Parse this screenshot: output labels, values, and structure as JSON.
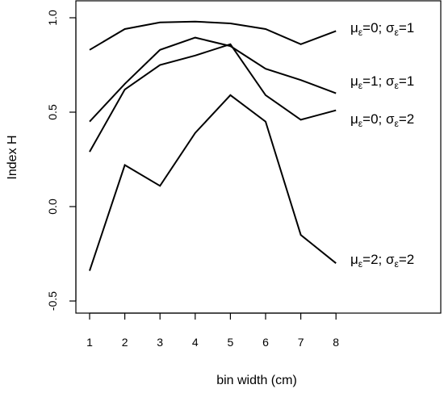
{
  "chart_data": {
    "type": "line",
    "title": "",
    "xlabel": "bin width (cm)",
    "ylabel": "Index H",
    "x": [
      1,
      2,
      3,
      4,
      5,
      6,
      7,
      8
    ],
    "xlim": [
      1,
      8
    ],
    "ylim": [
      -0.5,
      1.0
    ],
    "x_ticks": [
      "1",
      "2",
      "3",
      "4",
      "5",
      "6",
      "7",
      "8"
    ],
    "y_ticks": [
      {
        "value": -0.5,
        "label": "-0.5"
      },
      {
        "value": 0.0,
        "label": "0.0"
      },
      {
        "value": 0.5,
        "label": "0.5"
      },
      {
        "value": 1.0,
        "label": "1.0"
      }
    ],
    "grid": false,
    "legend": "none",
    "series_color": "#000000",
    "series": [
      {
        "mu_symbol": "μ",
        "mu_sub": "ε",
        "mu_val": "=0; ",
        "sigma_symbol": "σ",
        "sigma_sub": "ε",
        "sigma_val": "=1",
        "values": [
          0.83,
          0.94,
          0.975,
          0.98,
          0.97,
          0.94,
          0.86,
          0.93
        ]
      },
      {
        "mu_symbol": "μ",
        "mu_sub": "ε",
        "mu_val": "=1; ",
        "sigma_symbol": "σ",
        "sigma_sub": "ε",
        "sigma_val": "=1",
        "values": [
          0.45,
          0.65,
          0.83,
          0.895,
          0.85,
          0.73,
          0.67,
          0.6
        ]
      },
      {
        "mu_symbol": "μ",
        "mu_sub": "ε",
        "mu_val": "=0; ",
        "sigma_symbol": "σ",
        "sigma_sub": "ε",
        "sigma_val": "=2",
        "values": [
          0.29,
          0.62,
          0.75,
          0.8,
          0.86,
          0.59,
          0.46,
          0.51
        ]
      },
      {
        "mu_symbol": "μ",
        "mu_sub": "ε",
        "mu_val": "=2; ",
        "sigma_symbol": "σ",
        "sigma_sub": "ε",
        "sigma_val": "=2",
        "values": [
          -0.34,
          0.22,
          0.11,
          0.39,
          0.59,
          0.45,
          -0.15,
          -0.3
        ]
      }
    ]
  }
}
